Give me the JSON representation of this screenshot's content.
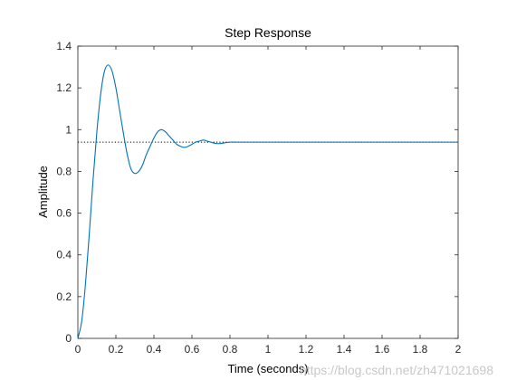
{
  "chart_data": {
    "type": "line",
    "title": "Step Response",
    "xlabel": "Time (seconds)",
    "ylabel": "Amplitude",
    "xlim": [
      0,
      2
    ],
    "ylim": [
      0,
      1.4
    ],
    "xticks": [
      0,
      0.2,
      0.4,
      0.6,
      0.8,
      1,
      1.2,
      1.4,
      1.6,
      1.8,
      2
    ],
    "xtick_labels": [
      "0",
      "0.2",
      "0.4",
      "0.6",
      "0.8",
      "1",
      "1.2",
      "1.4",
      "1.6",
      "1.8",
      "2"
    ],
    "yticks": [
      0,
      0.2,
      0.4,
      0.6,
      0.8,
      1,
      1.2,
      1.4
    ],
    "ytick_labels": [
      "0",
      "0.2",
      "0.4",
      "0.6",
      "0.8",
      "1",
      "1.2",
      "1.4"
    ],
    "grid": false,
    "steady_state": 0.94,
    "series": [
      {
        "color": "#0072bd",
        "x": [
          0,
          0.02,
          0.04,
          0.06,
          0.08,
          0.1,
          0.12,
          0.14,
          0.16,
          0.18,
          0.2,
          0.22,
          0.24,
          0.26,
          0.28,
          0.3,
          0.32,
          0.34,
          0.36,
          0.38,
          0.4,
          0.42,
          0.44,
          0.46,
          0.48,
          0.5,
          0.52,
          0.54,
          0.56,
          0.58,
          0.6,
          0.62,
          0.64,
          0.66,
          0.68,
          0.7,
          0.72,
          0.74,
          0.76,
          0.78,
          0.8,
          0.84,
          0.88,
          0.92,
          0.96,
          1.0,
          1.04,
          1.08,
          1.12,
          1.16,
          1.2,
          1.3,
          1.4,
          1.5,
          1.6,
          1.7,
          1.8,
          1.9,
          2.0
        ],
        "y": [
          0,
          0.08,
          0.26,
          0.5,
          0.76,
          0.99,
          1.17,
          1.28,
          1.31,
          1.28,
          1.2,
          1.09,
          0.98,
          0.88,
          0.81,
          0.79,
          0.8,
          0.83,
          0.88,
          0.92,
          0.96,
          0.99,
          1.0,
          0.99,
          0.97,
          0.95,
          0.93,
          0.92,
          0.915,
          0.92,
          0.93,
          0.94,
          0.945,
          0.95,
          0.945,
          0.94,
          0.935,
          0.933,
          0.935,
          0.938,
          0.94,
          0.94,
          0.94,
          0.94,
          0.94,
          0.94,
          0.94,
          0.94,
          0.94,
          0.94,
          0.94,
          0.94,
          0.94,
          0.94,
          0.94,
          0.94,
          0.94,
          0.94,
          0.94
        ]
      }
    ],
    "watermark": "https://blog.csdn.net/zh471021698"
  }
}
